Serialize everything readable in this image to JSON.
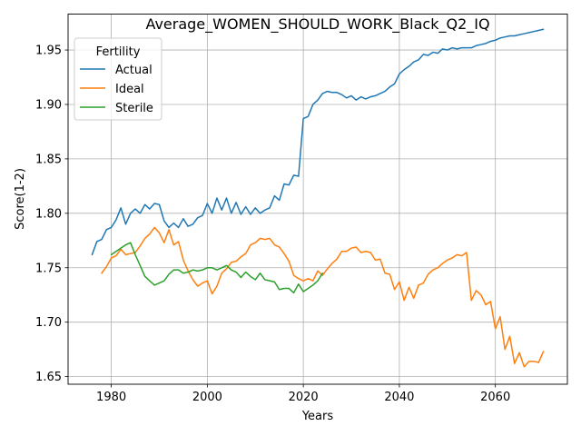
{
  "chart_data": {
    "type": "line",
    "title": "Average_WOMEN_SHOULD_WORK_Black_Q2_IQ",
    "xlabel": "Years",
    "ylabel": "Score(1-2)",
    "xlim": [
      1971,
      2075
    ],
    "ylim": [
      1.643,
      1.983
    ],
    "xticks": [
      1980,
      2000,
      2020,
      2040,
      2060
    ],
    "yticks": [
      1.65,
      1.7,
      1.75,
      1.8,
      1.85,
      1.9,
      1.95
    ],
    "grid": true,
    "legend": {
      "title": "Fertility",
      "placement": "top-left"
    },
    "series": [
      {
        "name": "Actual",
        "color": "#1f77b4",
        "points": [
          [
            1976,
            1.762
          ],
          [
            1977,
            1.774
          ],
          [
            1978,
            1.776
          ],
          [
            1979,
            1.785
          ],
          [
            1980,
            1.787
          ],
          [
            1981,
            1.794
          ],
          [
            1982,
            1.805
          ],
          [
            1983,
            1.79
          ],
          [
            1984,
            1.8
          ],
          [
            1985,
            1.804
          ],
          [
            1986,
            1.8
          ],
          [
            1987,
            1.808
          ],
          [
            1988,
            1.804
          ],
          [
            1989,
            1.809
          ],
          [
            1990,
            1.808
          ],
          [
            1991,
            1.793
          ],
          [
            1992,
            1.787
          ],
          [
            1993,
            1.791
          ],
          [
            1994,
            1.787
          ],
          [
            1995,
            1.795
          ],
          [
            1996,
            1.788
          ],
          [
            1997,
            1.79
          ],
          [
            1998,
            1.796
          ],
          [
            1999,
            1.798
          ],
          [
            2000,
            1.809
          ],
          [
            2001,
            1.8
          ],
          [
            2002,
            1.814
          ],
          [
            2003,
            1.803
          ],
          [
            2004,
            1.814
          ],
          [
            2005,
            1.8
          ],
          [
            2006,
            1.81
          ],
          [
            2007,
            1.799
          ],
          [
            2008,
            1.806
          ],
          [
            2009,
            1.799
          ],
          [
            2010,
            1.805
          ],
          [
            2011,
            1.8
          ],
          [
            2012,
            1.803
          ],
          [
            2013,
            1.805
          ],
          [
            2014,
            1.816
          ],
          [
            2015,
            1.812
          ],
          [
            2016,
            1.827
          ],
          [
            2017,
            1.826
          ],
          [
            2018,
            1.835
          ],
          [
            2019,
            1.834
          ],
          [
            2020,
            1.887
          ],
          [
            2021,
            1.889
          ],
          [
            2022,
            1.9
          ],
          [
            2023,
            1.904
          ],
          [
            2024,
            1.91
          ],
          [
            2025,
            1.912
          ],
          [
            2026,
            1.911
          ],
          [
            2027,
            1.911
          ],
          [
            2028,
            1.909
          ],
          [
            2029,
            1.906
          ],
          [
            2030,
            1.908
          ],
          [
            2031,
            1.904
          ],
          [
            2032,
            1.907
          ],
          [
            2033,
            1.905
          ],
          [
            2034,
            1.907
          ],
          [
            2035,
            1.908
          ],
          [
            2036,
            1.91
          ],
          [
            2037,
            1.912
          ],
          [
            2038,
            1.916
          ],
          [
            2039,
            1.919
          ],
          [
            2040,
            1.928
          ],
          [
            2041,
            1.932
          ],
          [
            2042,
            1.935
          ],
          [
            2043,
            1.939
          ],
          [
            2044,
            1.941
          ],
          [
            2045,
            1.946
          ],
          [
            2046,
            1.945
          ],
          [
            2047,
            1.948
          ],
          [
            2048,
            1.947
          ],
          [
            2049,
            1.951
          ],
          [
            2050,
            1.95
          ],
          [
            2051,
            1.952
          ],
          [
            2052,
            1.951
          ],
          [
            2053,
            1.952
          ],
          [
            2054,
            1.952
          ],
          [
            2055,
            1.952
          ],
          [
            2056,
            1.954
          ],
          [
            2057,
            1.955
          ],
          [
            2058,
            1.956
          ],
          [
            2059,
            1.958
          ],
          [
            2060,
            1.959
          ],
          [
            2061,
            1.961
          ],
          [
            2062,
            1.962
          ],
          [
            2063,
            1.963
          ],
          [
            2064,
            1.963
          ],
          [
            2065,
            1.964
          ],
          [
            2066,
            1.965
          ],
          [
            2067,
            1.966
          ],
          [
            2068,
            1.967
          ],
          [
            2069,
            1.968
          ],
          [
            2070,
            1.969
          ]
        ]
      },
      {
        "name": "Ideal",
        "color": "#ff7f0e",
        "points": [
          [
            1978,
            1.745
          ],
          [
            1979,
            1.751
          ],
          [
            1980,
            1.759
          ],
          [
            1981,
            1.761
          ],
          [
            1982,
            1.767
          ],
          [
            1983,
            1.762
          ],
          [
            1984,
            1.763
          ],
          [
            1985,
            1.764
          ],
          [
            1986,
            1.77
          ],
          [
            1987,
            1.777
          ],
          [
            1988,
            1.781
          ],
          [
            1989,
            1.787
          ],
          [
            1990,
            1.782
          ],
          [
            1991,
            1.773
          ],
          [
            1992,
            1.785
          ],
          [
            1993,
            1.771
          ],
          [
            1994,
            1.774
          ],
          [
            1995,
            1.757
          ],
          [
            1996,
            1.747
          ],
          [
            1997,
            1.739
          ],
          [
            1998,
            1.733
          ],
          [
            1999,
            1.736
          ],
          [
            2000,
            1.738
          ],
          [
            2001,
            1.726
          ],
          [
            2002,
            1.733
          ],
          [
            2003,
            1.745
          ],
          [
            2004,
            1.749
          ],
          [
            2005,
            1.755
          ],
          [
            2006,
            1.756
          ],
          [
            2007,
            1.76
          ],
          [
            2008,
            1.763
          ],
          [
            2009,
            1.771
          ],
          [
            2010,
            1.773
          ],
          [
            2011,
            1.777
          ],
          [
            2012,
            1.776
          ],
          [
            2013,
            1.777
          ],
          [
            2014,
            1.771
          ],
          [
            2015,
            1.769
          ],
          [
            2016,
            1.763
          ],
          [
            2017,
            1.756
          ],
          [
            2018,
            1.743
          ],
          [
            2019,
            1.74
          ],
          [
            2020,
            1.738
          ],
          [
            2021,
            1.74
          ],
          [
            2022,
            1.738
          ],
          [
            2023,
            1.747
          ],
          [
            2024,
            1.743
          ],
          [
            2025,
            1.749
          ],
          [
            2026,
            1.754
          ],
          [
            2027,
            1.758
          ],
          [
            2028,
            1.765
          ],
          [
            2029,
            1.765
          ],
          [
            2030,
            1.768
          ],
          [
            2031,
            1.769
          ],
          [
            2032,
            1.764
          ],
          [
            2033,
            1.765
          ],
          [
            2034,
            1.764
          ],
          [
            2035,
            1.757
          ],
          [
            2036,
            1.758
          ],
          [
            2037,
            1.745
          ],
          [
            2038,
            1.744
          ],
          [
            2039,
            1.73
          ],
          [
            2040,
            1.737
          ],
          [
            2041,
            1.72
          ],
          [
            2042,
            1.732
          ],
          [
            2043,
            1.722
          ],
          [
            2044,
            1.734
          ],
          [
            2045,
            1.736
          ],
          [
            2046,
            1.744
          ],
          [
            2047,
            1.748
          ],
          [
            2048,
            1.75
          ],
          [
            2049,
            1.754
          ],
          [
            2050,
            1.757
          ],
          [
            2051,
            1.759
          ],
          [
            2052,
            1.762
          ],
          [
            2053,
            1.761
          ],
          [
            2054,
            1.764
          ],
          [
            2055,
            1.72
          ],
          [
            2056,
            1.729
          ],
          [
            2057,
            1.725
          ],
          [
            2058,
            1.716
          ],
          [
            2059,
            1.719
          ],
          [
            2060,
            1.694
          ],
          [
            2061,
            1.705
          ],
          [
            2062,
            1.675
          ],
          [
            2063,
            1.687
          ],
          [
            2064,
            1.662
          ],
          [
            2065,
            1.672
          ],
          [
            2066,
            1.659
          ],
          [
            2067,
            1.664
          ],
          [
            2068,
            1.664
          ],
          [
            2069,
            1.663
          ],
          [
            2070,
            1.673
          ]
        ]
      },
      {
        "name": "Sterile",
        "color": "#2ca02c",
        "points": [
          [
            1980,
            1.762
          ],
          [
            1981,
            1.765
          ],
          [
            1982,
            1.768
          ],
          [
            1983,
            1.771
          ],
          [
            1984,
            1.773
          ],
          [
            1985,
            1.762
          ],
          [
            1986,
            1.752
          ],
          [
            1987,
            1.742
          ],
          [
            1988,
            1.738
          ],
          [
            1989,
            1.734
          ],
          [
            1990,
            1.736
          ],
          [
            1991,
            1.738
          ],
          [
            1992,
            1.744
          ],
          [
            1993,
            1.748
          ],
          [
            1994,
            1.748
          ],
          [
            1995,
            1.745
          ],
          [
            1996,
            1.746
          ],
          [
            1997,
            1.748
          ],
          [
            1998,
            1.747
          ],
          [
            1999,
            1.748
          ],
          [
            2000,
            1.75
          ],
          [
            2001,
            1.75
          ],
          [
            2002,
            1.748
          ],
          [
            2003,
            1.75
          ],
          [
            2004,
            1.752
          ],
          [
            2005,
            1.748
          ],
          [
            2006,
            1.746
          ],
          [
            2007,
            1.741
          ],
          [
            2008,
            1.746
          ],
          [
            2009,
            1.742
          ],
          [
            2010,
            1.739
          ],
          [
            2011,
            1.745
          ],
          [
            2012,
            1.739
          ],
          [
            2013,
            1.738
          ],
          [
            2014,
            1.737
          ],
          [
            2015,
            1.73
          ],
          [
            2016,
            1.731
          ],
          [
            2017,
            1.731
          ],
          [
            2018,
            1.727
          ],
          [
            2019,
            1.735
          ],
          [
            2020,
            1.728
          ],
          [
            2021,
            1.731
          ],
          [
            2022,
            1.734
          ],
          [
            2023,
            1.738
          ],
          [
            2024,
            1.745
          ]
        ]
      }
    ]
  }
}
